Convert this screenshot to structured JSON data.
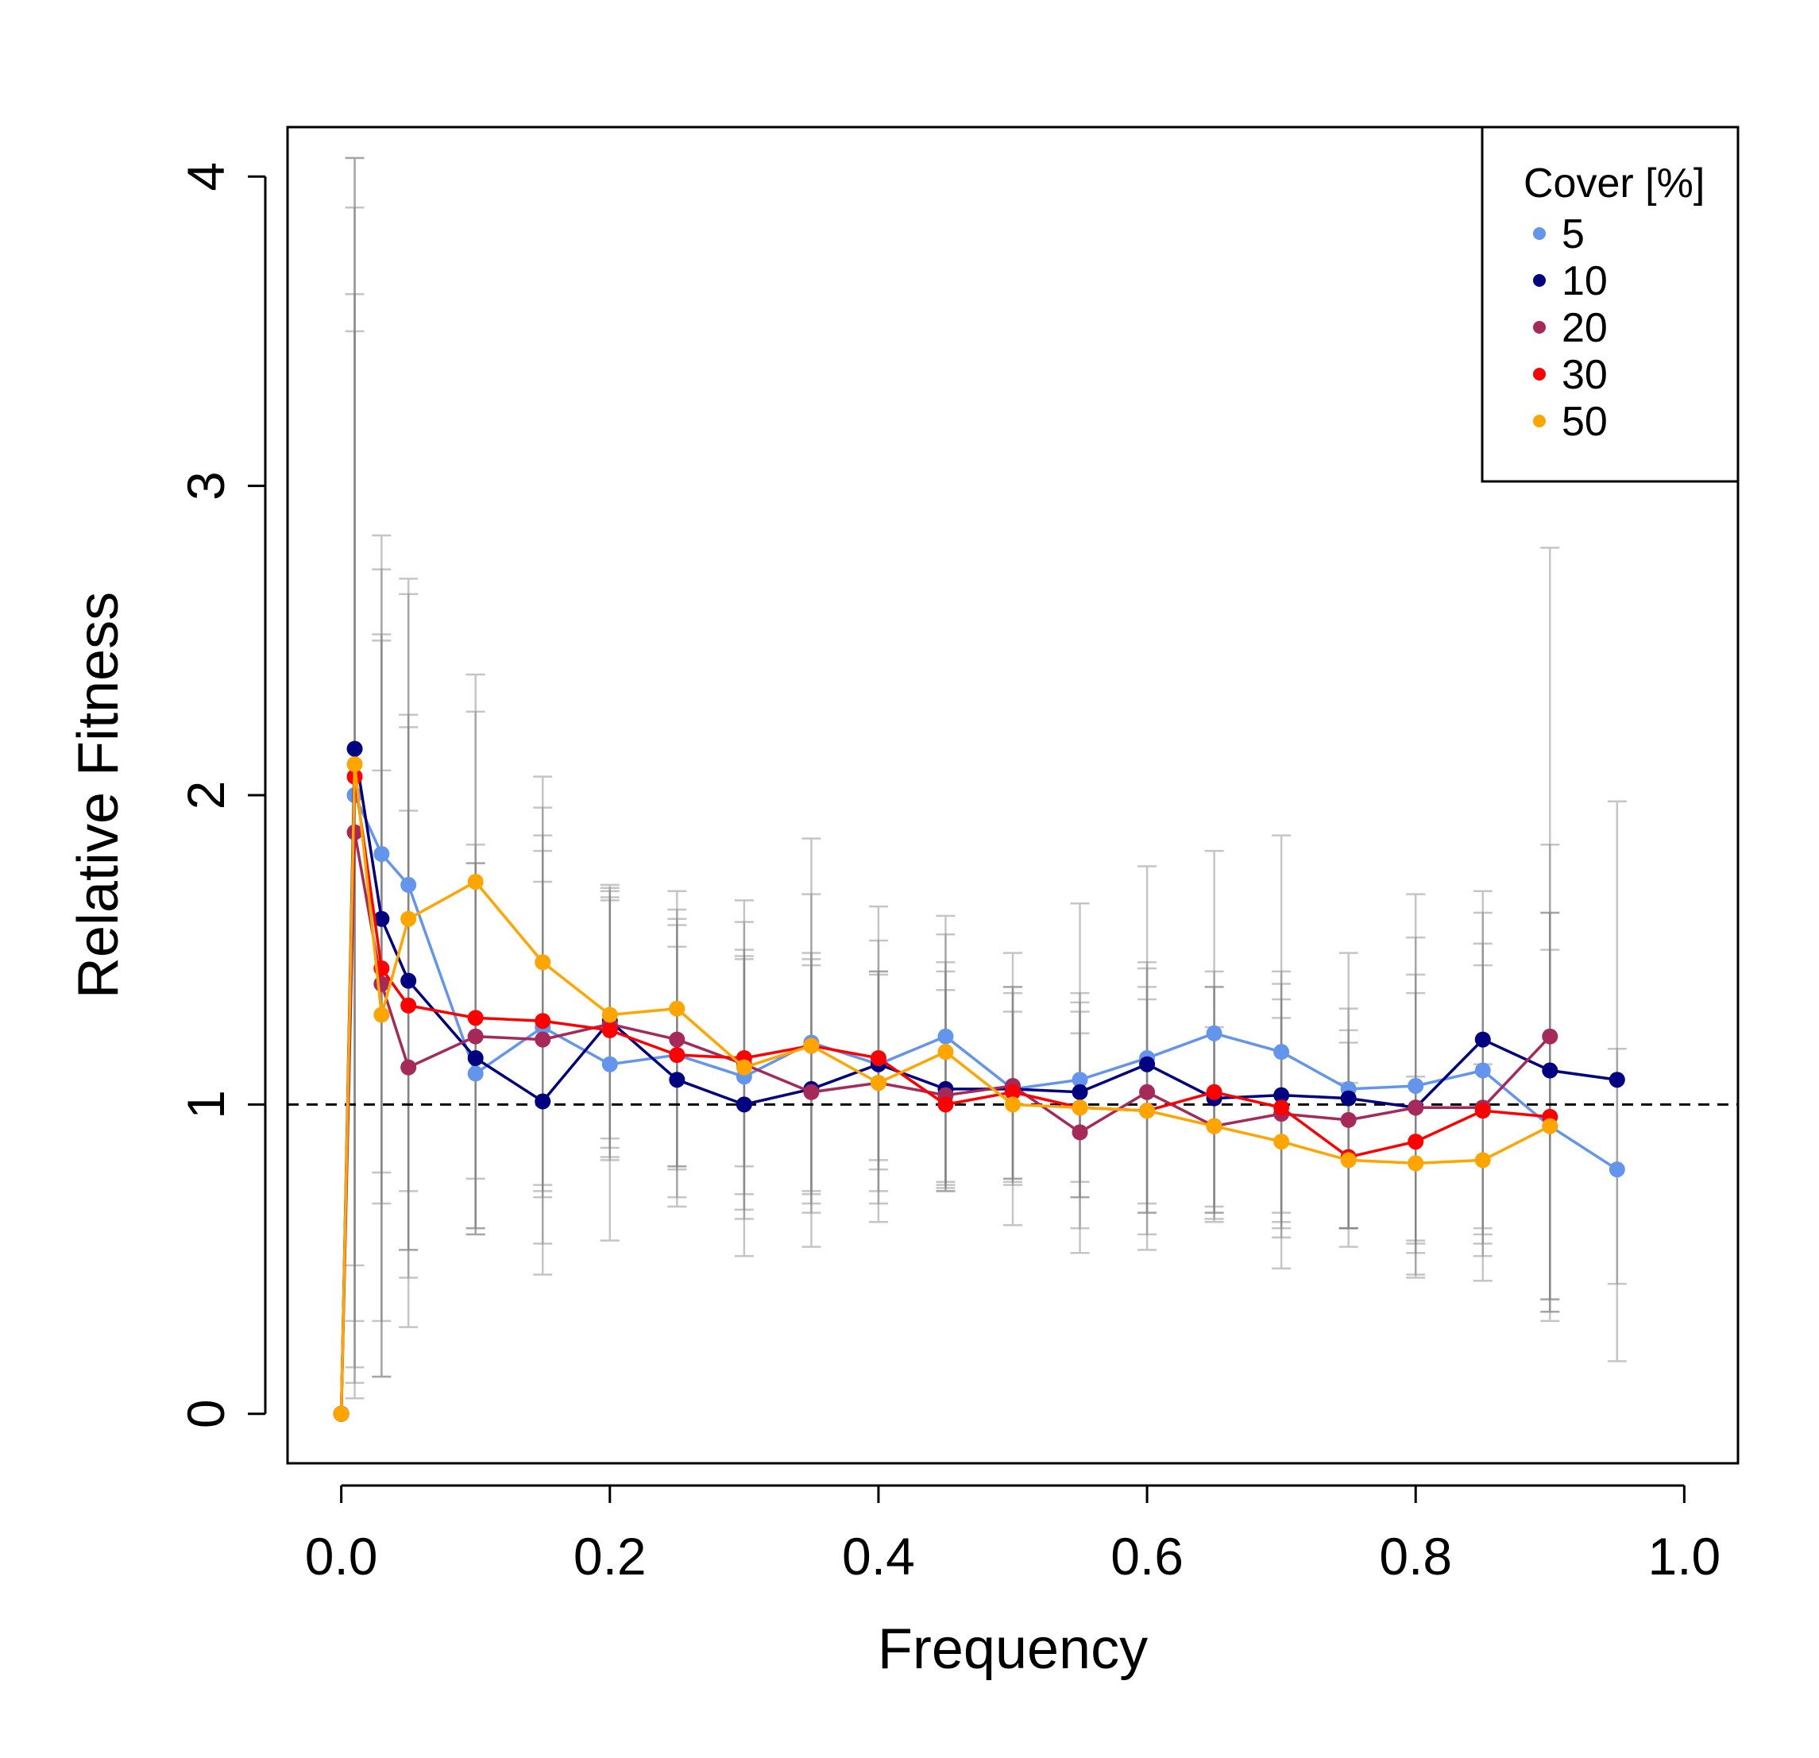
{
  "chart_data": {
    "type": "line",
    "xlabel": "Frequency",
    "ylabel": "Relative Fitness",
    "xlim": [
      -0.04,
      1.04
    ],
    "ylim": [
      -0.16,
      4.16
    ],
    "x_ticks": [
      0.0,
      0.2,
      0.4,
      0.6,
      0.8,
      1.0
    ],
    "x_tick_labels": [
      "0.0",
      "0.2",
      "0.4",
      "0.6",
      "0.8",
      "1.0"
    ],
    "y_ticks": [
      0,
      1,
      2,
      3,
      4
    ],
    "y_tick_labels": [
      "0",
      "1",
      "2",
      "3",
      "4"
    ],
    "reference_line": {
      "y": 1,
      "style": "dashed"
    },
    "grid": false,
    "legend": {
      "title": "Cover [%]",
      "position": "top-right"
    },
    "error_bar_color": "#808080",
    "series": [
      {
        "name": "5",
        "color": "#6495ED",
        "x": [
          0,
          0.01,
          0.03,
          0.05,
          0.1,
          0.15,
          0.2,
          0.25,
          0.3,
          0.35,
          0.4,
          0.45,
          0.5,
          0.55,
          0.6,
          0.65,
          0.7,
          0.75,
          0.8,
          0.85,
          0.9,
          0.95
        ],
        "y": [
          0,
          2.0,
          1.81,
          1.71,
          1.1,
          1.25,
          1.13,
          1.16,
          1.09,
          1.2,
          1.13,
          1.22,
          1.05,
          1.08,
          1.15,
          1.23,
          1.17,
          1.05,
          1.06,
          1.11,
          0.93,
          0.79
        ],
        "lower": [
          0,
          0.1,
          0.12,
          0.28,
          0.58,
          0.45,
          0.56,
          0.67,
          0.51,
          0.54,
          0.62,
          0.74,
          0.61,
          0.52,
          0.53,
          0.62,
          0.47,
          0.54,
          0.45,
          0.43,
          0.3,
          0.17
        ],
        "upper": [
          0,
          4.06,
          2.84,
          2.7,
          2.39,
          2.06,
          1.71,
          1.69,
          1.66,
          1.86,
          1.64,
          1.61,
          1.49,
          1.65,
          1.77,
          1.82,
          1.87,
          1.49,
          1.68,
          1.69,
          2.8,
          1.98
        ]
      },
      {
        "name": "10",
        "color": "#000080",
        "x": [
          0,
          0.01,
          0.03,
          0.05,
          0.1,
          0.15,
          0.2,
          0.25,
          0.3,
          0.35,
          0.4,
          0.45,
          0.5,
          0.55,
          0.6,
          0.65,
          0.7,
          0.75,
          0.8,
          0.85,
          0.9,
          0.95
        ],
        "y": [
          0,
          2.15,
          1.6,
          1.4,
          1.15,
          1.01,
          1.27,
          1.08,
          1.0,
          1.05,
          1.13,
          1.05,
          1.05,
          1.04,
          1.13,
          1.02,
          1.03,
          1.02,
          0.99,
          1.21,
          1.11,
          1.08
        ],
        "lower": [
          0,
          0.05,
          0.78,
          0.53,
          0.6,
          0.72,
          0.89,
          0.8,
          0.8,
          0.72,
          0.82,
          0.75,
          0.76,
          0.75,
          0.68,
          0.63,
          0.65,
          0.6,
          0.56,
          0.6,
          0.37,
          0.42
        ],
        "upper": [
          0,
          4.06,
          2.52,
          2.26,
          1.84,
          1.72,
          1.66,
          1.51,
          1.48,
          1.45,
          1.43,
          1.37,
          1.38,
          1.33,
          1.46,
          1.43,
          1.43,
          1.24,
          1.42,
          1.62,
          1.84,
          1.18
        ]
      },
      {
        "name": "20",
        "color": "#A52A5A",
        "x": [
          0,
          0.01,
          0.03,
          0.05,
          0.1,
          0.15,
          0.2,
          0.25,
          0.3,
          0.35,
          0.4,
          0.45,
          0.5,
          0.55,
          0.6,
          0.65,
          0.7,
          0.75,
          0.8,
          0.85,
          0.9
        ],
        "y": [
          0,
          1.88,
          1.39,
          1.12,
          1.22,
          1.21,
          1.26,
          1.21,
          1.13,
          1.04,
          1.07,
          1.03,
          1.06,
          0.91,
          1.04,
          0.93,
          0.97,
          0.95,
          0.99,
          0.99,
          1.22
        ],
        "lower": [
          0,
          0.15,
          0.3,
          0.44,
          0.6,
          0.7,
          0.86,
          0.79,
          0.71,
          0.68,
          0.79,
          0.73,
          0.76,
          0.7,
          0.65,
          0.65,
          0.6,
          0.6,
          0.55,
          0.58,
          0.37
        ],
        "upper": [
          0,
          3.62,
          2.5,
          1.95,
          1.78,
          1.82,
          1.7,
          1.6,
          1.5,
          1.47,
          1.42,
          1.46,
          1.38,
          1.23,
          1.44,
          1.38,
          1.39,
          1.31,
          1.54,
          1.52,
          1.62
        ]
      },
      {
        "name": "30",
        "color": "#FF0000",
        "x": [
          0,
          0.01,
          0.03,
          0.05,
          0.1,
          0.15,
          0.2,
          0.25,
          0.3,
          0.35,
          0.4,
          0.45,
          0.5,
          0.55,
          0.6,
          0.65,
          0.7,
          0.75,
          0.8,
          0.85,
          0.9
        ],
        "y": [
          0,
          2.06,
          1.44,
          1.32,
          1.28,
          1.27,
          1.24,
          1.16,
          1.15,
          1.19,
          1.15,
          1.0,
          1.04,
          0.99,
          0.98,
          1.04,
          0.99,
          0.83,
          0.88,
          0.98,
          0.96
        ],
        "lower": [
          0,
          0.3,
          0.68,
          0.72,
          0.76,
          0.74,
          0.83,
          0.7,
          0.66,
          0.71,
          0.72,
          0.72,
          0.75,
          0.7,
          0.65,
          0.65,
          0.62,
          0.6,
          0.44,
          0.55,
          0.33
        ],
        "upper": [
          0,
          3.5,
          2.73,
          2.22,
          1.78,
          1.87,
          1.67,
          1.58,
          1.47,
          1.49,
          1.53,
          1.43,
          1.36,
          1.3,
          1.34,
          1.38,
          1.34,
          1.2,
          1.36,
          1.45,
          1.5
        ]
      },
      {
        "name": "50",
        "color": "#FFA500",
        "x": [
          0,
          0.01,
          0.03,
          0.05,
          0.1,
          0.15,
          0.2,
          0.25,
          0.3,
          0.35,
          0.4,
          0.45,
          0.5,
          0.55,
          0.6,
          0.65,
          0.7,
          0.75,
          0.8,
          0.85,
          0.9
        ],
        "y": [
          0,
          2.1,
          1.29,
          1.6,
          1.72,
          1.46,
          1.29,
          1.31,
          1.12,
          1.19,
          1.07,
          1.17,
          1.0,
          0.99,
          0.98,
          0.93,
          0.88,
          0.82,
          0.81,
          0.82,
          0.93
        ],
        "lower": [
          0,
          0.48,
          0.12,
          0.53,
          0.58,
          0.55,
          0.82,
          0.8,
          0.63,
          0.65,
          0.68,
          0.72,
          0.74,
          0.6,
          0.58,
          0.67,
          0.57,
          0.6,
          0.52,
          0.51,
          0.33
        ],
        "upper": [
          0,
          3.9,
          2.08,
          2.65,
          2.27,
          1.96,
          1.69,
          1.63,
          1.59,
          1.68,
          1.43,
          1.55,
          1.3,
          1.36,
          1.38,
          1.25,
          1.28,
          1.07,
          1.09,
          1.13,
          1.62
        ]
      }
    ]
  }
}
